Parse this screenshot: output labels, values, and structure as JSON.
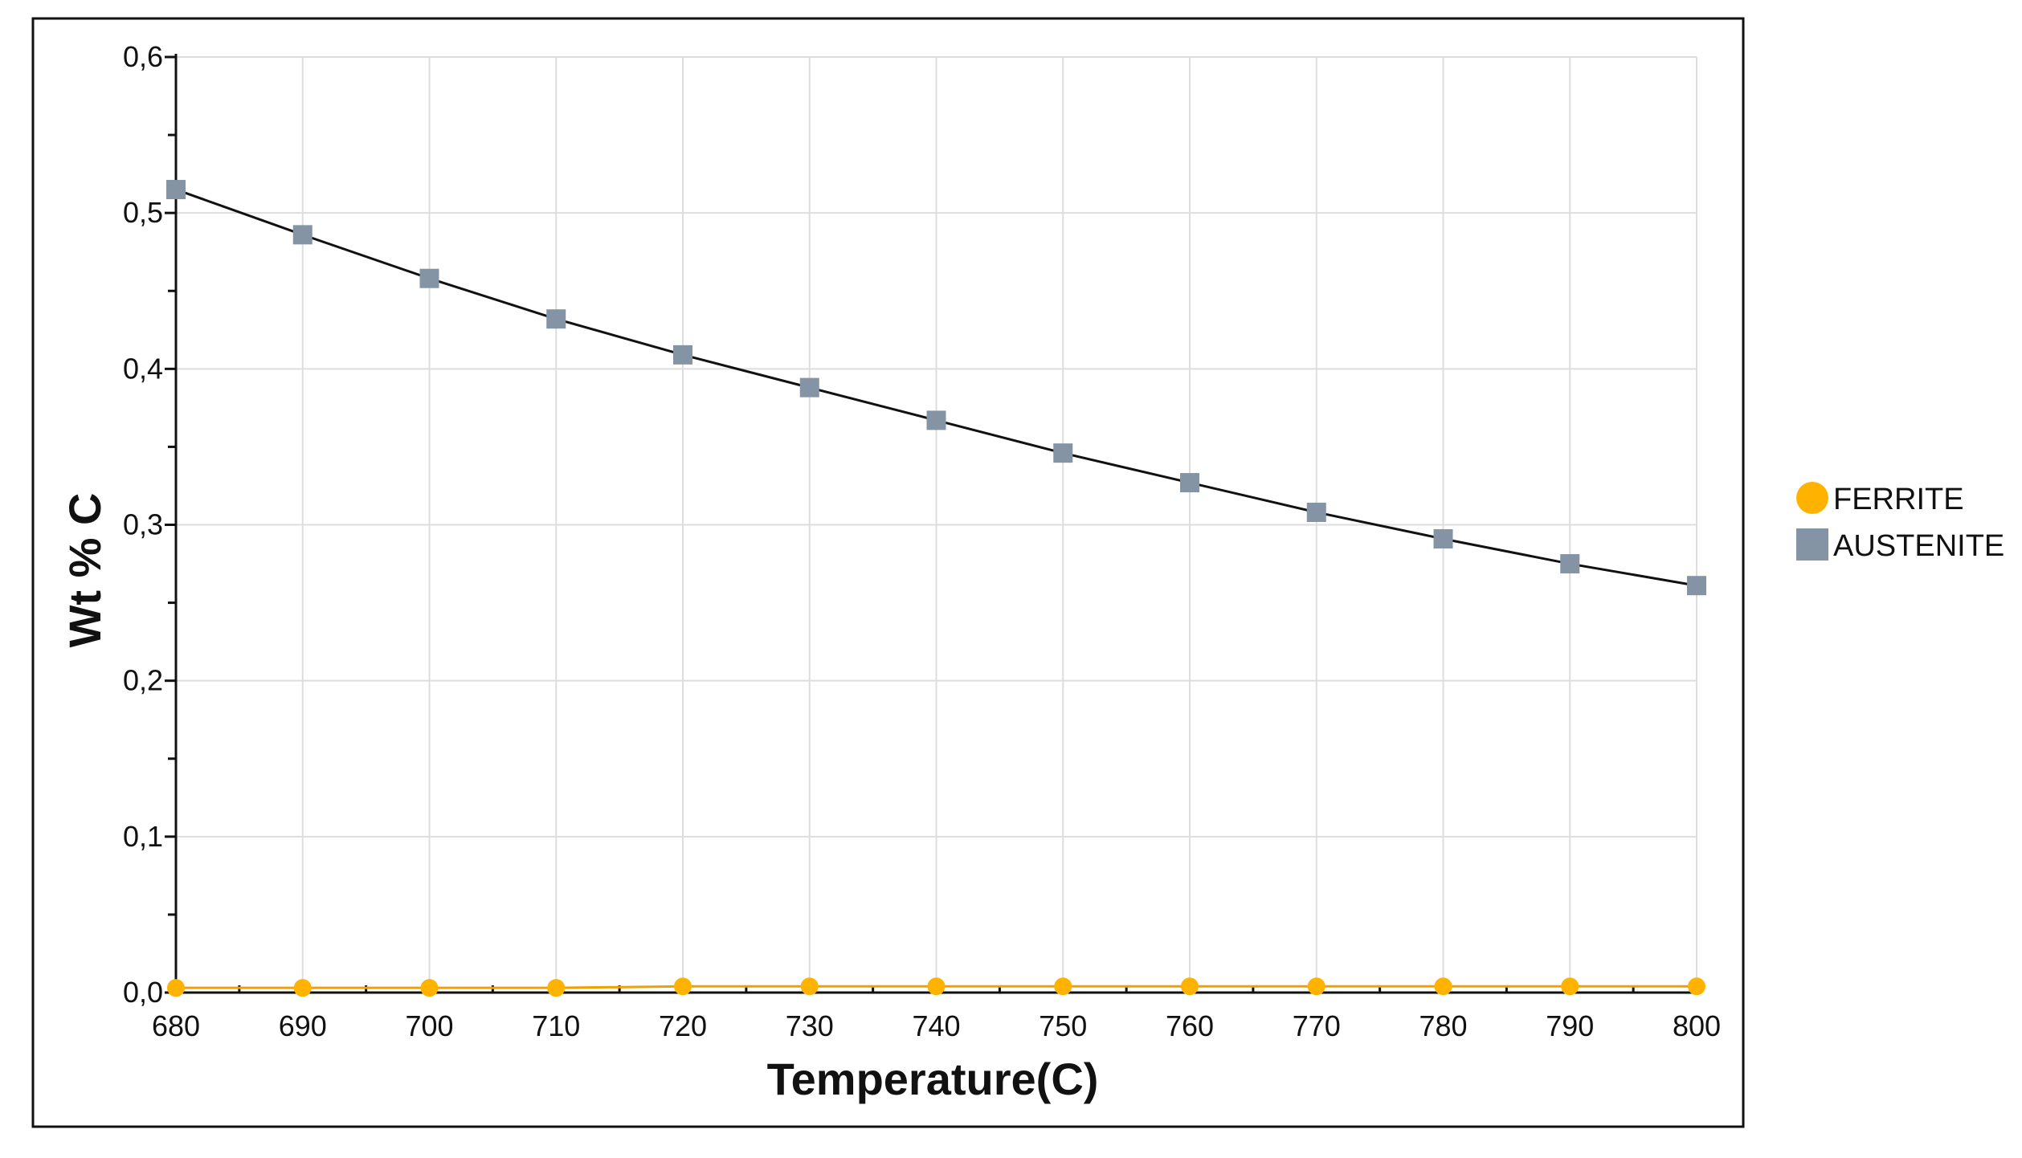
{
  "chart_data": {
    "type": "line",
    "title": "",
    "xlabel": "Temperature(C)",
    "ylabel": "Wt % C",
    "xlim": [
      680,
      800
    ],
    "ylim": [
      0.0,
      0.6
    ],
    "grid": true,
    "legend_position": "right",
    "x": [
      680,
      690,
      700,
      710,
      720,
      730,
      740,
      750,
      760,
      770,
      780,
      790,
      800
    ],
    "x_tick_labels": [
      "680",
      "690",
      "700",
      "710",
      "720",
      "730",
      "740",
      "750",
      "760",
      "770",
      "780",
      "790",
      "800"
    ],
    "y_ticks": [
      0.0,
      0.1,
      0.2,
      0.3,
      0.4,
      0.5,
      0.6
    ],
    "y_tick_labels": [
      "0,0",
      "0,1",
      "0,2",
      "0,3",
      "0,4",
      "0,5",
      "0,6"
    ],
    "series": [
      {
        "name": "FERRITE",
        "marker": "circle",
        "color": "#FFB300",
        "line_color": "#F0A000",
        "values": [
          0.003,
          0.003,
          0.003,
          0.003,
          0.004,
          0.004,
          0.004,
          0.004,
          0.004,
          0.004,
          0.004,
          0.004,
          0.004
        ]
      },
      {
        "name": "AUSTENITE",
        "marker": "square",
        "color": "#8494A4",
        "line_color": "#111111",
        "values": [
          0.515,
          0.486,
          0.458,
          0.432,
          0.409,
          0.388,
          0.367,
          0.346,
          0.327,
          0.308,
          0.291,
          0.275,
          0.261
        ]
      }
    ]
  }
}
